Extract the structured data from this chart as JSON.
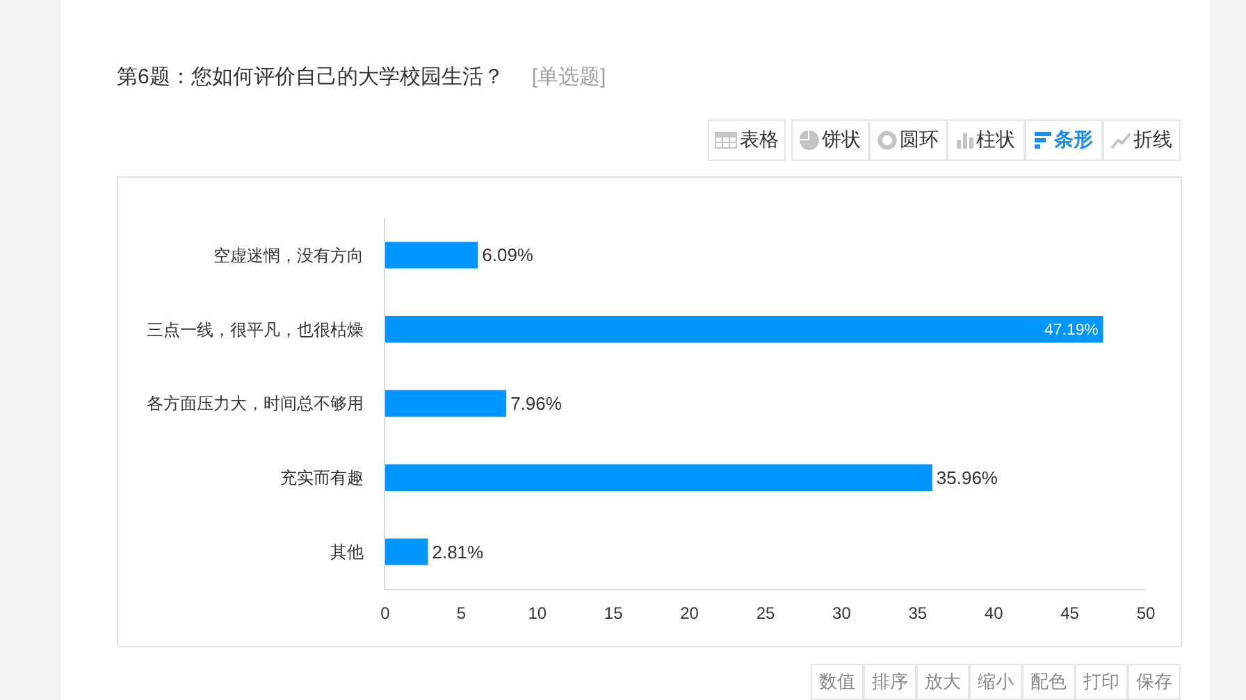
{
  "chart_data": {
    "type": "bar",
    "orientation": "horizontal",
    "title": "第6题：您如何评价自己的大学校园生活？",
    "subtitle": "[单选题]",
    "categories": [
      "空虚迷惘，没有方向",
      "三点一线，很平凡，也很枯燥",
      "各方面压力大，时间总不够用",
      "充实而有趣",
      "其他"
    ],
    "values": [
      6.09,
      47.19,
      7.96,
      35.96,
      2.81
    ],
    "value_labels": [
      "6.09%",
      "47.19%",
      "7.96%",
      "35.96%",
      "2.81%"
    ],
    "color": "#0095ff",
    "xlim": [
      0,
      50
    ],
    "xticks": [
      0,
      5,
      10,
      15,
      20,
      25,
      30,
      35,
      40,
      45,
      50
    ],
    "annotations": [
      "表格",
      "饼状",
      "圆环",
      "柱状",
      "条形",
      "折线",
      "数值",
      "排序",
      "放大",
      "缩小",
      "配色",
      "打印",
      "保存"
    ]
  }
}
